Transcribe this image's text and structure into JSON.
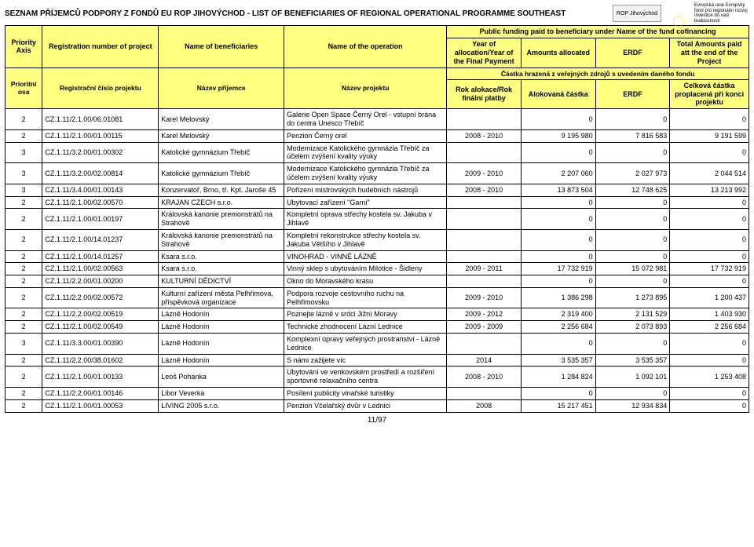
{
  "title": "SEZNAM PŘÍJEMCŮ PODPORY Z FONDŮ EU ROP JIHOVÝCHOD  -  LIST OF BENEFICIARIES OF REGIONAL OPERATIONAL PROGRAMME SOUTHEAST",
  "logos": {
    "rop": "ROP Jihovýchod",
    "eu_text": "Evropská unie\nEvropský fond pro regionální rozvoj\nInvestice do vaší budoucnosti"
  },
  "header": {
    "super": "Public funding paid to beneficiary under Name of the fund cofinancing",
    "en": {
      "axis": "Priority Axis",
      "reg": "Registration number of project",
      "benef": "Name of beneficiaries",
      "op": "Name of the operation",
      "year": "Year of allocation/Year of the Final Payment",
      "amount": "Amounts allocated",
      "erdf": "ERDF",
      "total": "Total Amounts paid att the end of the Project"
    },
    "stripe": "Částka hrazená z veřejných zdrojů s uvedením daného fondu",
    "cz": {
      "axis": "Prioritní osa",
      "reg": "Registrační číslo projektu",
      "benef": "Název příjemce",
      "op": "Název projektu",
      "year": "Rok alokace/Rok finální platby",
      "amount": "Alokovaná částka",
      "erdf": "ERDF",
      "total": "Celková částka proplacená při konci projektu"
    }
  },
  "rows": [
    {
      "axis": "2",
      "reg": "CZ.1.11/2.1.00/06.01081",
      "benef": "Karel Melovský",
      "op": "Galerie Open Space Černý Orel - vstupní brána do centra Unesco Třebíč",
      "year": "",
      "amount": "0",
      "erdf": "0",
      "total": "0"
    },
    {
      "axis": "2",
      "reg": "CZ.1.11/2.1.00/01.00115",
      "benef": "Karel Melovský",
      "op": "Penzion Černý orel",
      "year": "2008 - 2010",
      "amount": "9 195 980",
      "erdf": "7 816 583",
      "total": "9 191 599"
    },
    {
      "axis": "3",
      "reg": "CZ.1.11/3.2.00/01.00302",
      "benef": "Katolické gymnázium Třebíč",
      "op": "Modernizace Katolického gymnázia Třebíč za účelem zvýšení kvality výuky",
      "year": "",
      "amount": "0",
      "erdf": "0",
      "total": "0"
    },
    {
      "axis": "3",
      "reg": "CZ.1.11/3.2.00/02.00814",
      "benef": "Katolické gymnázium Třebíč",
      "op": "Modernizace Katolického gymnázia Třebíč za účelem zvýšení kvality výuky",
      "year": "2009 - 2010",
      "amount": "2 207 060",
      "erdf": "2 027 973",
      "total": "2 044 514"
    },
    {
      "axis": "3",
      "reg": "CZ.1.11/3.4.00/01.00143",
      "benef": "Konzervatoř, Brno, tř. Kpt. Jaroše 45",
      "op": "Pořízení mistrovských hudebních nástrojů",
      "year": "2008 - 2010",
      "amount": "13 873 504",
      "erdf": "12 748 625",
      "total": "13 213 992"
    },
    {
      "axis": "2",
      "reg": "CZ.1.11/2.1.00/02.00570",
      "benef": "KRAJAN CZECH s.r.o.",
      "op": "Ubytovací zařízení \"Garni\"",
      "year": "",
      "amount": "0",
      "erdf": "0",
      "total": "0"
    },
    {
      "axis": "2",
      "reg": "CZ.1.11/2.1.00/01.00197",
      "benef": "Královská kanonie premonstrátů na Strahově",
      "op": "Kompletní oprava střechy kostela sv. Jakuba v Jihlavě",
      "year": "",
      "amount": "0",
      "erdf": "0",
      "total": "0"
    },
    {
      "axis": "2",
      "reg": "CZ.1.11/2.1.00/14.01237",
      "benef": "Královská kanonie premonstrátů na Strahově",
      "op": "Kompletní rekonstrukce střechy kostela sv. Jakuba Většího v Jihlavě",
      "year": "",
      "amount": "0",
      "erdf": "0",
      "total": "0"
    },
    {
      "axis": "2",
      "reg": "CZ.1.11/2.1.00/14.01257",
      "benef": "Ksara s.r.o.",
      "op": "VINOHRAD - VINNÉ LÁZNĚ",
      "year": "",
      "amount": "0",
      "erdf": "0",
      "total": "0"
    },
    {
      "axis": "2",
      "reg": "CZ.1.11/2.1.00/02.00563",
      "benef": "Ksara s.r.o.",
      "op": "Vinný sklep s ubytováním Milotice - Šidleny",
      "year": "2009 - 2011",
      "amount": "17 732 919",
      "erdf": "15 072 981",
      "total": "17 732 919"
    },
    {
      "axis": "2",
      "reg": "CZ.1.11/2.2.00/01.00200",
      "benef": "KULTURNÍ DĚDICTVÍ",
      "op": "Okno do Moravského krasu",
      "year": "",
      "amount": "0",
      "erdf": "0",
      "total": "0"
    },
    {
      "axis": "2",
      "reg": "CZ.1.11/2.2.00/02.00572",
      "benef": "Kulturní zařízení města Pelhřimova, příspěvková organizace",
      "op": "Podpora rozvoje cestovního ruchu na Pelhřimovsku",
      "year": "2009 - 2010",
      "amount": "1 386 298",
      "erdf": "1 273 895",
      "total": "1 200 437"
    },
    {
      "axis": "2",
      "reg": "CZ.1.11/2.2.00/02.00519",
      "benef": "Lázně Hodonín",
      "op": "Poznejte lázně v srdci Jižní Moravy",
      "year": "2009 - 2012",
      "amount": "2 319 400",
      "erdf": "2 131 529",
      "total": "1 403 930"
    },
    {
      "axis": "2",
      "reg": "CZ.1.11/2.1.00/02.00549",
      "benef": "Lázně Hodonín",
      "op": "Technické zhodnocení Lázní Lednice",
      "year": "2009 - 2009",
      "amount": "2 256 684",
      "erdf": "2 073 893",
      "total": "2 256 684"
    },
    {
      "axis": "3",
      "reg": "CZ.1.11/3.3.00/01.00390",
      "benef": "Lázně Hodonín",
      "op": "Komplexní úpravy veřejných prostranství - Lázně Lednice",
      "year": "",
      "amount": "0",
      "erdf": "0",
      "total": "0"
    },
    {
      "axis": "2",
      "reg": "CZ.1.11/2.2.00/38.01602",
      "benef": "Lázně Hodonín",
      "op": "S námi zažijete víc",
      "year": "2014",
      "amount": "3 535 357",
      "erdf": "3 535 357",
      "total": "0"
    },
    {
      "axis": "2",
      "reg": "CZ.1.11/2.1.00/01.00133",
      "benef": "Leoš Pohanka",
      "op": "Ubytování ve venkovském prostředí a rozšíření sportovně relaxačního centra",
      "year": "2008 - 2010",
      "amount": "1 284 824",
      "erdf": "1 092 101",
      "total": "1 253 408"
    },
    {
      "axis": "2",
      "reg": "CZ.1.11/2.2.00/01.00146",
      "benef": "Libor Veverka",
      "op": "Posílení publicity vinařské turistiky",
      "year": "",
      "amount": "0",
      "erdf": "0",
      "total": "0"
    },
    {
      "axis": "2",
      "reg": "CZ.1.11/2.1.00/01.00053",
      "benef": "LIVING 2005 s.r.o.",
      "op": "Penzion Včelařský dvůr v Lednici",
      "year": "2008",
      "amount": "15 217 451",
      "erdf": "12 934 834",
      "total": "0"
    }
  ],
  "footer": "11/97"
}
